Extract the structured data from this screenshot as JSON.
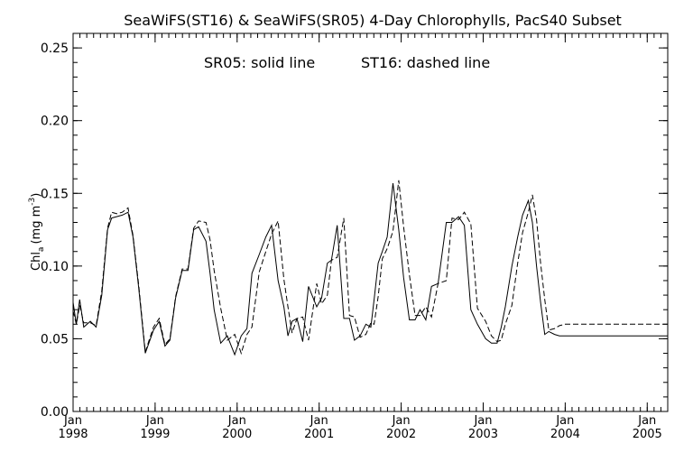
{
  "chart_data": {
    "type": "line",
    "title": "SeaWiFS(ST16) & SeaWiFS(SR05) 4-Day Chlorophylls, PacS40 Subset",
    "legend_note": {
      "sr05": "SR05: solid line",
      "st16": "ST16: dashed line"
    },
    "ylabel_main": "Chl",
    "ylabel_sub": "a",
    "ylabel_units": "(mg m",
    "ylabel_exp": "-3",
    "ylabel_close": ")",
    "ylim": [
      0,
      0.26
    ],
    "yticks": [
      "0.00",
      "0.05",
      "0.10",
      "0.15",
      "0.20",
      "0.25"
    ],
    "xlim": [
      1998.0,
      2005.25
    ],
    "xticks": [
      {
        "month": "Jan",
        "year": "1998"
      },
      {
        "month": "Jan",
        "year": "1999"
      },
      {
        "month": "Jan",
        "year": "2000"
      },
      {
        "month": "Jan",
        "year": "2001"
      },
      {
        "month": "Jan",
        "year": "2002"
      },
      {
        "month": "Jan",
        "year": "2003"
      },
      {
        "month": "Jan",
        "year": "2004"
      },
      {
        "month": "Jan",
        "year": "2005"
      }
    ],
    "grid": false,
    "x": [
      1998.0,
      1998.04,
      1998.08,
      1998.13,
      1998.21,
      1998.28,
      1998.35,
      1998.42,
      1998.47,
      1998.53,
      1998.6,
      1998.67,
      1998.73,
      1998.8,
      1998.88,
      1998.98,
      1999.05,
      1999.12,
      1999.18,
      1999.25,
      1999.33,
      1999.4,
      1999.47,
      1999.53,
      1999.62,
      1999.67,
      1999.72,
      1999.8,
      1999.88,
      1999.97,
      2000.05,
      2000.12,
      2000.18,
      2000.27,
      2000.35,
      2000.42,
      2000.5,
      2000.57,
      2000.62,
      2000.67,
      2000.73,
      2000.8,
      2000.87,
      2000.97,
      2001.03,
      2001.1,
      2001.15,
      2001.22,
      2001.3,
      2001.37,
      2001.43,
      2001.5,
      2001.57,
      2001.63,
      2001.67,
      2001.72,
      2001.77,
      2001.83,
      2001.9,
      2001.97,
      2002.03,
      2002.1,
      2002.17,
      2002.23,
      2002.3,
      2002.37,
      2002.45,
      2002.55,
      2002.62,
      2002.7,
      2002.77,
      2002.85,
      2002.93,
      2003.03,
      2003.1,
      2003.17,
      2003.22,
      2003.27,
      2003.35,
      2003.42,
      2003.48,
      2003.55,
      2003.6,
      2003.65,
      2003.7,
      2003.75,
      2003.8,
      2003.87,
      2003.93,
      2004.0,
      2004.07,
      2004.17,
      2004.25,
      2004.33,
      2004.4,
      2004.47,
      2004.55,
      2004.62,
      2004.68,
      2004.73,
      2004.8,
      2004.87,
      2004.97,
      2005.03,
      2005.1,
      2005.17,
      2005.25
    ],
    "series": [
      {
        "name": "SR05",
        "values": [
          0.075,
          0.06,
          0.077,
          0.058,
          0.062,
          0.058,
          0.08,
          0.125,
          0.133,
          0.134,
          0.135,
          0.137,
          0.12,
          0.085,
          0.04,
          0.056,
          0.062,
          0.045,
          0.049,
          0.078,
          0.097,
          0.097,
          0.125,
          0.127,
          0.117,
          0.095,
          0.07,
          0.047,
          0.052,
          0.039,
          0.052,
          0.057,
          0.095,
          0.108,
          0.12,
          0.128,
          0.09,
          0.072,
          0.052,
          0.062,
          0.064,
          0.048,
          0.086,
          0.072,
          0.078,
          0.102,
          0.104,
          0.128,
          0.064,
          0.064,
          0.049,
          0.052,
          0.06,
          0.058,
          0.077,
          0.102,
          0.11,
          0.12,
          0.157,
          0.125,
          0.092,
          0.063,
          0.063,
          0.07,
          0.063,
          0.086,
          0.088,
          0.13,
          0.13,
          0.134,
          0.128,
          0.07,
          0.06,
          0.05,
          0.047,
          0.047,
          0.058,
          0.072,
          0.1,
          0.12,
          0.135,
          0.145,
          0.13,
          0.1,
          0.075,
          0.053,
          0.055,
          0.053,
          0.052,
          0.052,
          0.052,
          0.052,
          0.052,
          0.052,
          0.052,
          0.052,
          0.052,
          0.052,
          0.052,
          0.052,
          0.052,
          0.052,
          0.052,
          0.052,
          0.052,
          0.052,
          0.052
        ]
      },
      {
        "name": "ST16",
        "values": [
          0.069,
          0.06,
          0.073,
          0.061,
          0.061,
          0.059,
          0.083,
          0.126,
          0.137,
          0.136,
          0.137,
          0.14,
          0.121,
          0.087,
          0.041,
          0.058,
          0.064,
          0.046,
          0.05,
          0.079,
          0.098,
          0.098,
          0.126,
          0.131,
          0.13,
          0.118,
          0.097,
          0.071,
          0.049,
          0.053,
          0.04,
          0.053,
          0.058,
          0.096,
          0.11,
          0.122,
          0.131,
          0.091,
          0.072,
          0.054,
          0.064,
          0.065,
          0.049,
          0.088,
          0.074,
          0.08,
          0.104,
          0.106,
          0.133,
          0.066,
          0.065,
          0.051,
          0.053,
          0.061,
          0.06,
          0.079,
          0.105,
          0.112,
          0.124,
          0.159,
          0.127,
          0.094,
          0.066,
          0.066,
          0.072,
          0.065,
          0.088,
          0.09,
          0.133,
          0.132,
          0.137,
          0.129,
          0.071,
          0.062,
          0.052,
          0.048,
          0.049,
          0.06,
          0.073,
          0.102,
          0.123,
          0.137,
          0.149,
          0.132,
          0.102,
          0.077,
          0.056,
          0.057,
          0.059,
          0.06,
          0.06,
          0.06,
          0.06,
          0.06,
          0.06,
          0.06,
          0.06,
          0.06,
          0.06,
          0.06,
          0.06,
          0.06,
          0.06,
          0.06,
          0.06,
          0.06,
          0.06
        ]
      }
    ]
  }
}
